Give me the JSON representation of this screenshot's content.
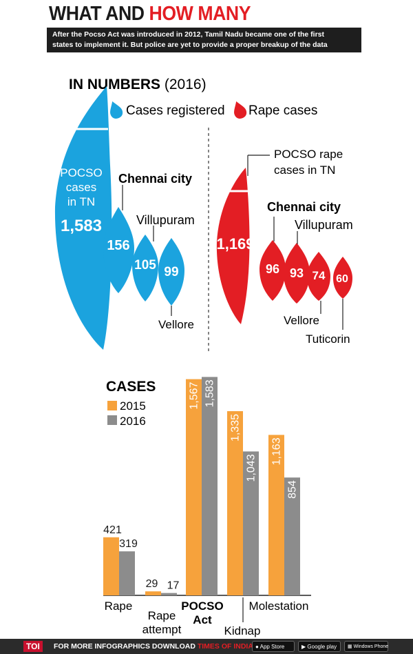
{
  "header": {
    "title_part1": "WHAT AND",
    "title_part2": "HOW MANY",
    "subtitle_line1": "After the Pocso Act was introduced in 2012, Tamil Nadu became one of the first",
    "subtitle_line2": "states to implement it. But police are yet to provide a proper breakup of the data"
  },
  "colors": {
    "blue": "#1ba3de",
    "red": "#e31e24",
    "orange": "#f6a23c",
    "gray": "#8c8c8c"
  },
  "infographic": {
    "title_bold": "IN NUMBERS",
    "title_year": "(2016)",
    "legend": {
      "cases": "Cases registered",
      "rape": "Rape cases"
    },
    "blue": {
      "main_label_1": "POCSO",
      "main_label_2": "cases",
      "main_label_3": "in TN",
      "main_value": "1,583",
      "chennai_label": "Chennai city",
      "chennai_value": "156",
      "villupuram_label": "Villupuram",
      "villupuram_value": "105",
      "vellore_label": "Vellore",
      "vellore_value": "99"
    },
    "red": {
      "main_label_1": "POCSO rape",
      "main_label_2": "cases in TN",
      "main_value": "1,169",
      "chennai_label": "Chennai city",
      "chennai_value": "96",
      "villupuram_label": "Villupuram",
      "villupuram_value": "93",
      "vellore_label": "Vellore",
      "vellore_value": "74",
      "tuticorin_label": "Tuticorin",
      "tuticorin_value": "60"
    }
  },
  "chart_data": {
    "type": "bar",
    "title": "CASES",
    "categories": [
      "Rape",
      "Rape attempt",
      "POCSO Act",
      "Kidnap",
      "Molestation"
    ],
    "series": [
      {
        "name": "2015",
        "values": [
          421,
          29,
          1567,
          1335,
          1163
        ],
        "labels": [
          "421",
          "29",
          "1,567",
          "1,335",
          "1,163"
        ]
      },
      {
        "name": "2016",
        "values": [
          319,
          17,
          1583,
          1043,
          854
        ],
        "labels": [
          "319",
          "17",
          "1,583",
          "1,043",
          "854"
        ]
      }
    ],
    "ylim": [
      0,
      1600
    ],
    "xlabel": "",
    "ylabel": ""
  },
  "footer": {
    "logo": "TOI",
    "cta": "FOR MORE INFOGRAPHICS DOWNLOAD",
    "app_name": "TIMES OF INDIA APP",
    "badge_appstore": "App Store",
    "badge_google": "Google play",
    "badge_windows": "Windows Phone"
  }
}
